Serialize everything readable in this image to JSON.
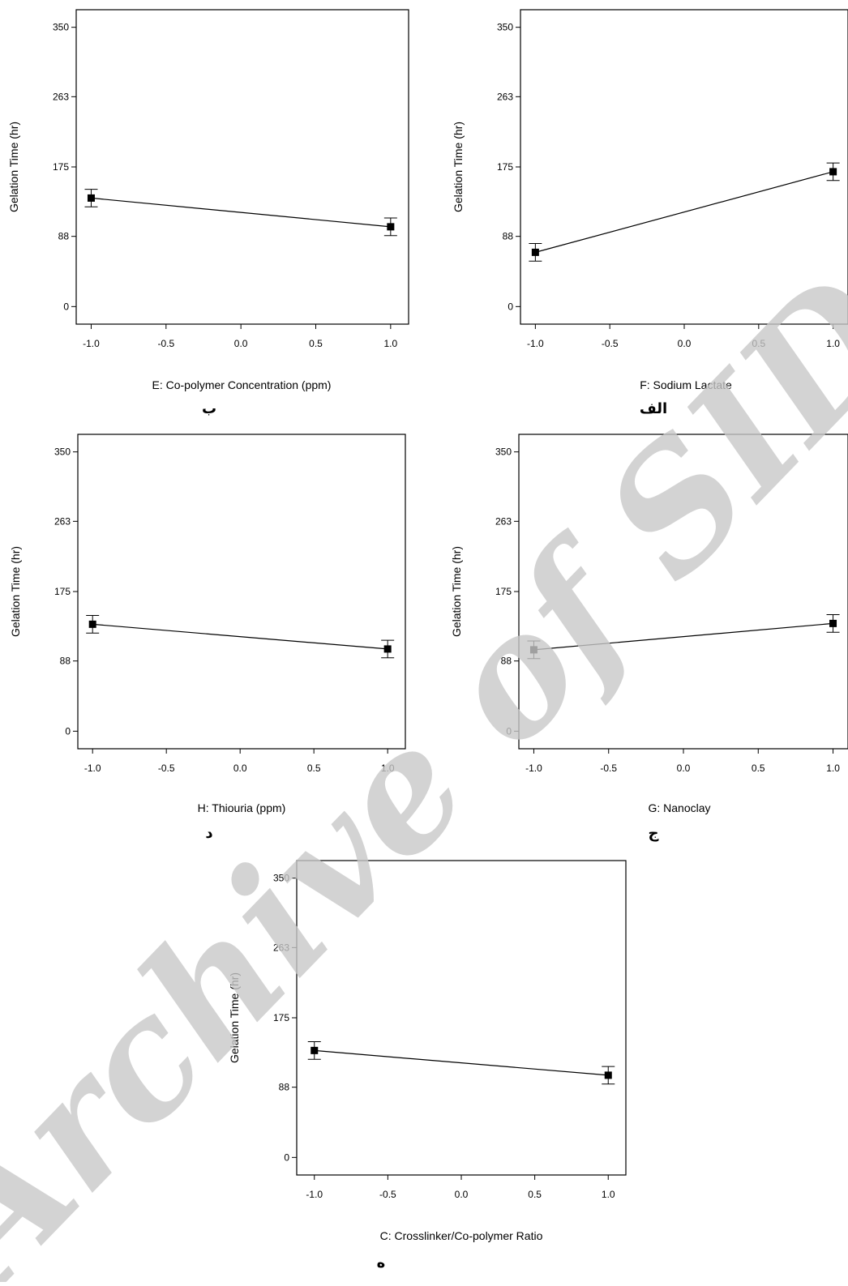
{
  "chart_data": [
    {
      "type": "line",
      "panel_letter": "ب",
      "xlabel": "E: Co-polymer Concentration (ppm)",
      "ylabel": "Gelation Time (hr)",
      "x": [
        -1.0,
        1.0
      ],
      "y": [
        136,
        100
      ],
      "error": [
        11,
        11
      ],
      "xticks": [
        "-1.0",
        "-0.5",
        "0.0",
        "0.5",
        "1.0"
      ],
      "yticks": [
        "350",
        "263",
        "175",
        "88",
        "0"
      ],
      "xlim": [
        -1.1,
        1.12
      ],
      "ylim": [
        -22,
        372
      ]
    },
    {
      "type": "line",
      "panel_letter": "الف",
      "xlabel": "F: Sodium Lactate",
      "ylabel": "Gelation Time (hr)",
      "x": [
        -1.0,
        1.0
      ],
      "y": [
        68,
        169
      ],
      "error": [
        11,
        11
      ],
      "xticks": [
        "-1.0",
        "-0.5",
        "0.0",
        "0.5",
        "1.0"
      ],
      "yticks": [
        "350",
        "263",
        "175",
        "88",
        "0"
      ],
      "xlim": [
        -1.1,
        1.1
      ],
      "ylim": [
        -22,
        372
      ]
    },
    {
      "type": "line",
      "panel_letter": "د",
      "xlabel": "H: Thiouria (ppm)",
      "ylabel": "Gelation Time (hr)",
      "x": [
        -1.0,
        1.0
      ],
      "y": [
        134,
        103
      ],
      "error": [
        11,
        11
      ],
      "xticks": [
        "-1.0",
        "-0.5",
        "0.0",
        "0.5",
        "1.0"
      ],
      "yticks": [
        "350",
        "263",
        "175",
        "88",
        "0"
      ],
      "xlim": [
        -1.1,
        1.12
      ],
      "ylim": [
        -22,
        372
      ]
    },
    {
      "type": "line",
      "panel_letter": "ج",
      "xlabel": "G: Nanoclay",
      "ylabel": "Gelation Time (hr)",
      "x": [
        -1.0,
        1.0
      ],
      "y": [
        102,
        135
      ],
      "error": [
        11,
        11
      ],
      "xticks": [
        "-1.0",
        "-0.5",
        "0.0",
        "0.5",
        "1.0"
      ],
      "yticks": [
        "350",
        "263",
        "175",
        "88",
        "0"
      ],
      "xlim": [
        -1.1,
        1.1
      ],
      "ylim": [
        -22,
        372
      ]
    },
    {
      "type": "line",
      "panel_letter": "ه",
      "xlabel": "C: Crosslinker/Co-polymer Ratio",
      "ylabel": "Gelation Time (hr)",
      "x": [
        -1.0,
        1.0
      ],
      "y": [
        134,
        103
      ],
      "error": [
        11,
        11
      ],
      "xticks": [
        "-1.0",
        "-0.5",
        "0.0",
        "0.5",
        "1.0"
      ],
      "yticks": [
        "350",
        "263",
        "175",
        "88",
        "0"
      ],
      "xlim": [
        -1.12,
        1.12
      ],
      "ylim": [
        -22,
        372
      ]
    }
  ],
  "watermark": {
    "text": "Archive of SID",
    "color": "#c8c8c8"
  },
  "colors": {
    "line": "#000000",
    "frame": "#000000"
  }
}
